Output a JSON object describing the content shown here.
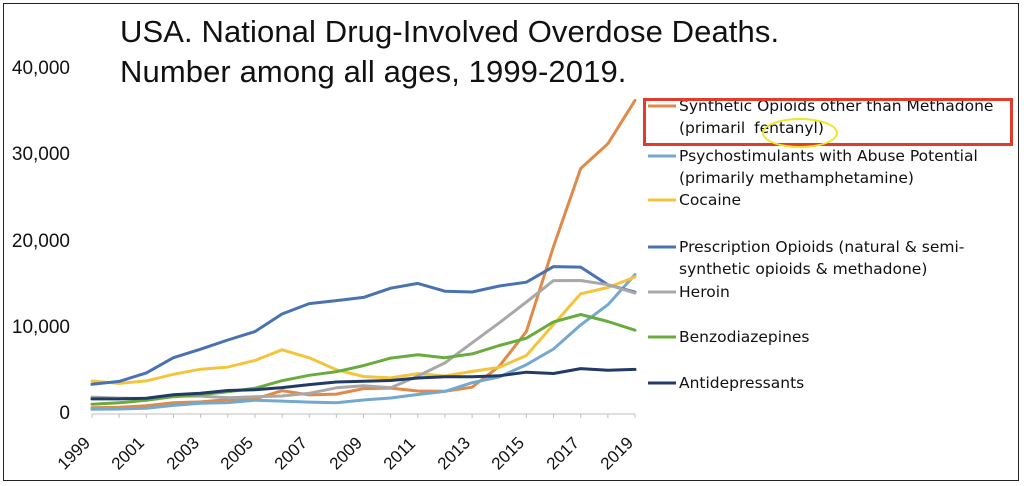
{
  "chart_data": {
    "type": "line",
    "title_line1": "USA. National Drug-Involved Overdose Deaths.",
    "title_line2": "Number among all ages, 1999-2019.",
    "x": [
      1999,
      2000,
      2001,
      2002,
      2003,
      2004,
      2005,
      2006,
      2007,
      2008,
      2009,
      2010,
      2011,
      2012,
      2013,
      2014,
      2015,
      2016,
      2017,
      2018,
      2019
    ],
    "x_tick_labels": [
      "1999",
      "2001",
      "2003",
      "2005",
      "2007",
      "2009",
      "2011",
      "2013",
      "2015",
      "2017",
      "2019"
    ],
    "ylim": [
      0,
      42000
    ],
    "y_tick_labels": [
      "0",
      "10,000",
      "20,000",
      "30,000",
      "40,000"
    ],
    "series": [
      {
        "name": "Synthetic Opioids other than Methadone",
        "name_line2_prefix": "(primaril",
        "name_line2_circled": "fentanyl)",
        "color": "#e08a4a",
        "values": [
          730,
          782,
          957,
          1295,
          1400,
          1664,
          1742,
          2707,
          2213,
          2306,
          2946,
          3007,
          2666,
          2628,
          3105,
          5544,
          9580,
          19413,
          28466,
          31335,
          36359
        ]
      },
      {
        "name": "Psychostimulants with Abuse Potential",
        "name_line2": "(primarily methamphetamine)",
        "color": "#74a9cf",
        "values": [
          547,
          578,
          662,
          1000,
          1246,
          1317,
          1600,
          1499,
          1378,
          1302,
          1621,
          1854,
          2258,
          2626,
          3627,
          4298,
          5716,
          7542,
          10333,
          12676,
          16167
        ]
      },
      {
        "name": "Cocaine",
        "color": "#f2c53d",
        "values": [
          3822,
          3544,
          3833,
          4599,
          5199,
          5443,
          6208,
          7448,
          6512,
          5129,
          4350,
          4183,
          4681,
          4404,
          4944,
          5415,
          6784,
          10375,
          13942,
          14666,
          15883
        ]
      },
      {
        "name": "Prescription Opioids (natural & semi-",
        "name_line2": "synthetic opioids & methadone)",
        "color": "#4a72b0",
        "values": [
          3442,
          3785,
          4770,
          6533,
          7510,
          8582,
          9552,
          11589,
          12796,
          13149,
          13523,
          14583,
          15140,
          14240,
          14145,
          14838,
          15281,
          17087,
          17029,
          14975,
          14139
        ]
      },
      {
        "name": "Heroin",
        "color": "#a8a8a8",
        "values": [
          1960,
          1842,
          1779,
          2089,
          2080,
          1878,
          2009,
          2088,
          2399,
          3041,
          3278,
          3036,
          4397,
          5925,
          8257,
          10574,
          12989,
          15469,
          15482,
          14996,
          14019
        ]
      },
      {
        "name": "Benzodiazepines",
        "color": "#6aab3e",
        "values": [
          1135,
          1298,
          1594,
          2004,
          2248,
          2585,
          2985,
          3865,
          4485,
          4900,
          5607,
          6485,
          6872,
          6524,
          6973,
          7945,
          8791,
          10684,
          11537,
          10724,
          9711
        ]
      },
      {
        "name": "Antidepressants",
        "color": "#213a66",
        "values": [
          1749,
          1749,
          1835,
          2240,
          2408,
          2720,
          2816,
          3060,
          3413,
          3709,
          3786,
          3889,
          4174,
          4319,
          4323,
          4433,
          4844,
          4697,
          5269,
          5064,
          5176
        ]
      }
    ]
  }
}
